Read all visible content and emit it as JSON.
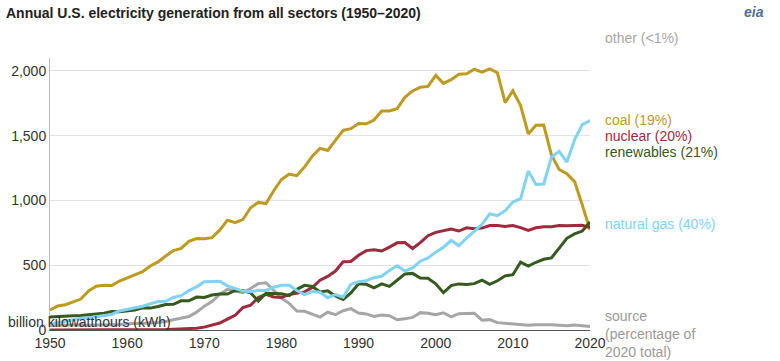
{
  "chart_data": {
    "type": "line",
    "title": "Annual U.S. electricity generation from all sectors (1950–2020)",
    "subtitle": "billion kilowatthours (kWh)",
    "legend_title": [
      "source",
      "(percentage of",
      "2020 total)"
    ],
    "legend": "right",
    "logo": "eia",
    "grid": true,
    "x": [
      1950,
      1951,
      1952,
      1953,
      1954,
      1955,
      1956,
      1957,
      1958,
      1959,
      1960,
      1961,
      1962,
      1963,
      1964,
      1965,
      1966,
      1967,
      1968,
      1969,
      1970,
      1971,
      1972,
      1973,
      1974,
      1975,
      1976,
      1977,
      1978,
      1979,
      1980,
      1981,
      1982,
      1983,
      1984,
      1985,
      1986,
      1987,
      1988,
      1989,
      1990,
      1991,
      1992,
      1993,
      1994,
      1995,
      1996,
      1997,
      1998,
      1999,
      2000,
      2001,
      2002,
      2003,
      2004,
      2005,
      2006,
      2007,
      2008,
      2009,
      2010,
      2011,
      2012,
      2013,
      2014,
      2015,
      2016,
      2017,
      2018,
      2019,
      2020
    ],
    "xlim": [
      1950,
      2020
    ],
    "xticks": [
      1950,
      1960,
      1970,
      1980,
      1990,
      2000,
      2010,
      2020
    ],
    "ylim": [
      0,
      2100
    ],
    "yticks": [
      0,
      500,
      {
        "value": 1000,
        "label": "1,000"
      },
      {
        "value": 1500,
        "label": "1,500"
      },
      {
        "value": 2000,
        "label": "2,000"
      }
    ],
    "series": [
      {
        "name": "natural gas",
        "share": "(40%)",
        "color": "#7fd3f7",
        "values": [
          45,
          57,
          68,
          78,
          90,
          95,
          104,
          114,
          120,
          147,
          158,
          169,
          184,
          202,
          220,
          222,
          251,
          265,
          304,
          333,
          373,
          374,
          376,
          341,
          320,
          300,
          295,
          306,
          305,
          330,
          346,
          346,
          305,
          274,
          297,
          292,
          249,
          273,
          253,
          352,
          372,
          381,
          404,
          415,
          460,
          496,
          455,
          479,
          531,
          556,
          601,
          639,
          691,
          650,
          710,
          761,
          816,
          897,
          883,
          921,
          988,
          1014,
          1226,
          1124,
          1127,
          1334,
          1379,
          1297,
          1469,
          1586,
          1617
        ]
      },
      {
        "name": "renewables",
        "share": "(21%)",
        "color": "#345a1e",
        "values": [
          101,
          105,
          110,
          110,
          112,
          116,
          124,
          130,
          143,
          141,
          149,
          155,
          172,
          169,
          181,
          196,
          198,
          225,
          225,
          254,
          251,
          270,
          277,
          277,
          305,
          303,
          287,
          224,
          284,
          284,
          279,
          266,
          314,
          345,
          336,
          294,
          302,
          263,
          236,
          286,
          357,
          353,
          325,
          356,
          337,
          384,
          433,
          437,
          402,
          400,
          357,
          288,
          343,
          356,
          351,
          358,
          385,
          352,
          380,
          418,
          427,
          524,
          494,
          523,
          546,
          556,
          632,
          708,
          742,
          764,
          834
        ]
      },
      {
        "name": "nuclear",
        "share": "(20%)",
        "color": "#9e2a3c",
        "values": [
          0,
          0,
          0,
          0,
          0,
          0,
          0,
          0,
          0,
          0,
          1,
          2,
          2,
          3,
          3,
          4,
          6,
          8,
          13,
          14,
          22,
          38,
          54,
          84,
          114,
          173,
          191,
          251,
          276,
          255,
          251,
          273,
          283,
          294,
          328,
          384,
          414,
          455,
          527,
          529,
          577,
          613,
          619,
          610,
          640,
          673,
          675,
          629,
          674,
          728,
          754,
          769,
          780,
          764,
          789,
          782,
          787,
          806,
          806,
          799,
          807,
          790,
          769,
          789,
          797,
          797,
          806,
          805,
          807,
          809,
          790
        ]
      },
      {
        "name": "coal",
        "share": "(19%)",
        "color": "#c09a1e",
        "values": [
          155,
          185,
          195,
          219,
          239,
          301,
          338,
          346,
          344,
          378,
          403,
          422,
          450,
          494,
          526,
          571,
          613,
          630,
          685,
          706,
          704,
          713,
          771,
          848,
          828,
          853,
          944,
          985,
          976,
          1075,
          1162,
          1203,
          1192,
          1259,
          1342,
          1402,
          1386,
          1464,
          1541,
          1554,
          1594,
          1592,
          1621,
          1690,
          1691,
          1709,
          1796,
          1846,
          1874,
          1881,
          1966,
          1904,
          1933,
          1974,
          1978,
          2013,
          1991,
          2016,
          1986,
          1756,
          1847,
          1733,
          1514,
          1581,
          1582,
          1352,
          1239,
          1206,
          1146,
          965,
          774
        ]
      },
      {
        "name": "other",
        "share": "(<1%)",
        "color": "#a6a6a6",
        "values": [
          34,
          36,
          38,
          39,
          40,
          37,
          38,
          40,
          38,
          43,
          48,
          49,
          52,
          55,
          58,
          65,
          79,
          89,
          104,
          138,
          184,
          220,
          274,
          314,
          301,
          289,
          320,
          358,
          365,
          303,
          246,
          206,
          147,
          144,
          120,
          100,
          137,
          118,
          149,
          165,
          131,
          124,
          104,
          115,
          110,
          79,
          86,
          97,
          134,
          130,
          118,
          133,
          101,
          126,
          128,
          130,
          76,
          80,
          57,
          52,
          50,
          45,
          37,
          40,
          42,
          40,
          37,
          33,
          38,
          31,
          27
        ]
      }
    ]
  }
}
